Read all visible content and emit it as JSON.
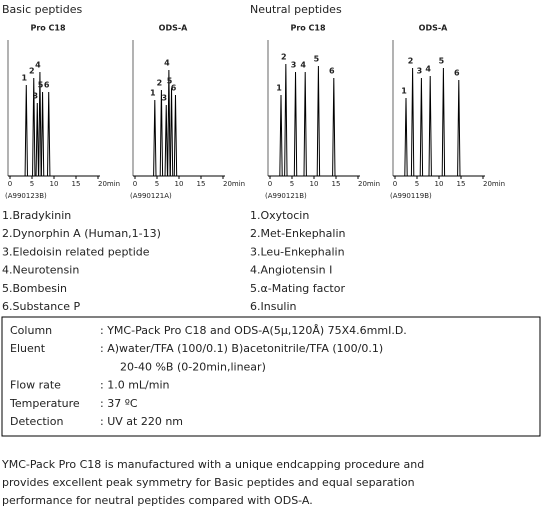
{
  "sections": [
    {
      "title": "Basic peptides",
      "panels": [
        {
          "title": "Pro C18",
          "code": "(A990123B)",
          "ticks": [
            "0",
            "5",
            "10",
            "15",
            "20min"
          ],
          "peaks": [
            "1",
            "2",
            "3",
            "4",
            "5",
            "6"
          ]
        },
        {
          "title": "ODS-A",
          "code": "(A990121A)",
          "ticks": [
            "0",
            "5",
            "10",
            "15",
            "20min"
          ],
          "peaks": [
            "1",
            "2",
            "3",
            "4",
            "5",
            "6"
          ]
        }
      ],
      "compounds": [
        "1.Bradykinin",
        "2.Dynorphin A (Human,1-13)",
        "3.Eledoisin related peptide",
        "4.Neurotensin",
        "5.Bombesin",
        "6.Substance P"
      ]
    },
    {
      "title": "Neutral peptides",
      "panels": [
        {
          "title": "Pro C18",
          "code": "(A990121B)",
          "ticks": [
            "0",
            "5",
            "10",
            "15",
            "20min"
          ],
          "peaks": [
            "1",
            "2",
            "3",
            "4",
            "5",
            "6"
          ]
        },
        {
          "title": "ODS-A",
          "code": "(A990119B)",
          "ticks": [
            "0",
            "5",
            "10",
            "15",
            "20min"
          ],
          "peaks": [
            "1",
            "2",
            "3",
            "4",
            "5",
            "6"
          ]
        }
      ],
      "compounds": [
        "1.Oxytocin",
        "2.Met-Enkephalin",
        "3.Leu-Enkephalin",
        "4.Angiotensin I",
        "5.α-Mating factor",
        "6.Insulin"
      ]
    }
  ],
  "conditions": [
    [
      "Column",
      ": YMC-Pack Pro C18 and ODS-A(5μ,120Å) 75X4.6mmI.D."
    ],
    [
      "Eluent",
      ": A)water/TFA (100/0.1)     B)acetonitrile/TFA  (100/0.1)"
    ],
    [
      "",
      "20-40 %B  (0-20min,linear)"
    ],
    [
      "Flow rate",
      ": 1.0 mL/min"
    ],
    [
      "Temperature",
      ": 37 ºC"
    ],
    [
      "Detection",
      ": UV at 220 nm"
    ]
  ],
  "footer": [
    "YMC-Pack Pro C18 is manufactured with a unique endcapping procedure and",
    "provides excellent peak symmetry for Basic peptides and equal separation",
    "performance for neutral peptides compared with ODS-A."
  ]
}
